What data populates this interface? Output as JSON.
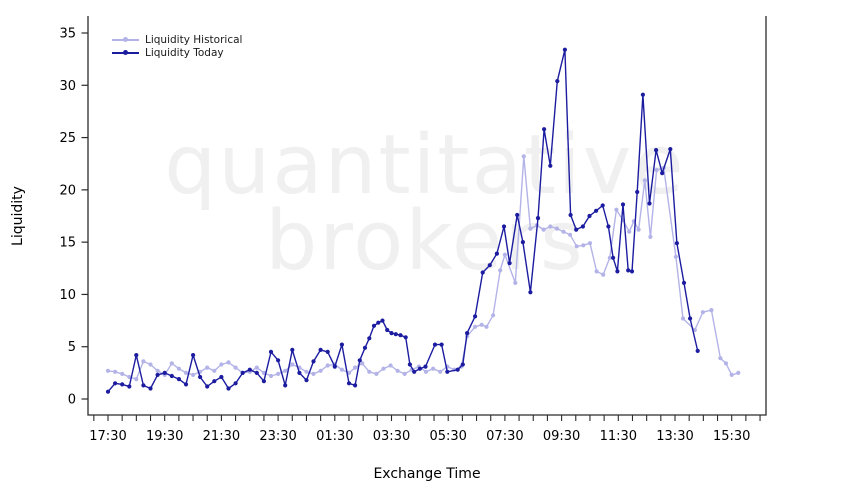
{
  "watermark": {
    "line1": "quantitative",
    "line2": "brokers"
  },
  "colors": {
    "historical": "#b3b3e8",
    "today": "#1c1ca0",
    "axis": "#2b2b2b",
    "text": "#000000",
    "watermark": "#f0f0f0"
  },
  "legend": [
    {
      "label": "Liquidity Historical",
      "series_key": "historical"
    },
    {
      "label": "Liquidity Today",
      "series_key": "today"
    }
  ],
  "chart_data": {
    "type": "line",
    "title": "",
    "xlabel": "Exchange Time",
    "ylabel": "Liquidity",
    "ylim": [
      0,
      35
    ],
    "grid": false,
    "legend_position": "top-left-inside",
    "x_unit": "minutes since 17:30 (exchange time, wraps past midnight)",
    "y_ticks": [
      0,
      5,
      10,
      15,
      20,
      25,
      30,
      35
    ],
    "x_major_ticks": [
      {
        "t": 0,
        "label": "17:30"
      },
      {
        "t": 120,
        "label": "19:30"
      },
      {
        "t": 240,
        "label": "21:30"
      },
      {
        "t": 360,
        "label": "23:30"
      },
      {
        "t": 480,
        "label": "01:30"
      },
      {
        "t": 600,
        "label": "03:30"
      },
      {
        "t": 720,
        "label": "05:30"
      },
      {
        "t": 840,
        "label": "07:30"
      },
      {
        "t": 960,
        "label": "09:30"
      },
      {
        "t": 1080,
        "label": "11:30"
      },
      {
        "t": 1200,
        "label": "13:30"
      },
      {
        "t": 1320,
        "label": "15:30"
      }
    ],
    "x_minor_tick_interval_min": 30,
    "x_minor_tick_range_min": [
      -30,
      1380
    ],
    "series": [
      {
        "name": "Liquidity Historical",
        "color_key": "historical",
        "points": [
          [
            0,
            2.7
          ],
          [
            15,
            2.6
          ],
          [
            30,
            2.4
          ],
          [
            45,
            2.1
          ],
          [
            60,
            1.9
          ],
          [
            75,
            3.6
          ],
          [
            90,
            3.3
          ],
          [
            105,
            2.7
          ],
          [
            120,
            2.3
          ],
          [
            135,
            3.4
          ],
          [
            150,
            2.9
          ],
          [
            165,
            2.5
          ],
          [
            180,
            2.3
          ],
          [
            195,
            2.6
          ],
          [
            210,
            3.0
          ],
          [
            225,
            2.7
          ],
          [
            240,
            3.3
          ],
          [
            255,
            3.5
          ],
          [
            270,
            3.0
          ],
          [
            285,
            2.5
          ],
          [
            300,
            2.6
          ],
          [
            315,
            3.0
          ],
          [
            330,
            2.5
          ],
          [
            345,
            2.2
          ],
          [
            360,
            2.4
          ],
          [
            375,
            2.7
          ],
          [
            390,
            3.3
          ],
          [
            405,
            3.0
          ],
          [
            420,
            2.6
          ],
          [
            435,
            2.4
          ],
          [
            450,
            2.7
          ],
          [
            465,
            3.2
          ],
          [
            480,
            3.3
          ],
          [
            495,
            2.8
          ],
          [
            510,
            2.5
          ],
          [
            523,
            3.0
          ],
          [
            538,
            3.4
          ],
          [
            553,
            2.6
          ],
          [
            568,
            2.4
          ],
          [
            583,
            2.9
          ],
          [
            598,
            3.2
          ],
          [
            613,
            2.7
          ],
          [
            628,
            2.4
          ],
          [
            643,
            2.8
          ],
          [
            658,
            3.1
          ],
          [
            673,
            2.6
          ],
          [
            688,
            2.9
          ],
          [
            703,
            2.6
          ],
          [
            718,
            3.1
          ],
          [
            733,
            2.8
          ],
          [
            748,
            3.1
          ],
          [
            760,
            6.0
          ],
          [
            777,
            6.9
          ],
          [
            791,
            7.1
          ],
          [
            801,
            6.9
          ],
          [
            815,
            8.0
          ],
          [
            830,
            12.3
          ],
          [
            840,
            13.8
          ],
          [
            862,
            11.1
          ],
          [
            880,
            23.2
          ],
          [
            894,
            16.3
          ],
          [
            908,
            16.6
          ],
          [
            922,
            16.2
          ],
          [
            936,
            16.5
          ],
          [
            950,
            16.3
          ],
          [
            964,
            16.0
          ],
          [
            978,
            15.7
          ],
          [
            992,
            14.6
          ],
          [
            1006,
            14.7
          ],
          [
            1020,
            14.9
          ],
          [
            1034,
            12.2
          ],
          [
            1048,
            11.9
          ],
          [
            1062,
            13.5
          ],
          [
            1076,
            18.1
          ],
          [
            1090,
            17.1
          ],
          [
            1103,
            16.0
          ],
          [
            1113,
            17.0
          ],
          [
            1123,
            16.2
          ],
          [
            1136,
            20.9
          ],
          [
            1148,
            15.5
          ],
          [
            1161,
            21.9
          ],
          [
            1176,
            22.1
          ],
          [
            1202,
            13.6
          ],
          [
            1217,
            7.7
          ],
          [
            1242,
            6.6
          ],
          [
            1259,
            8.3
          ],
          [
            1277,
            8.5
          ],
          [
            1296,
            3.9
          ],
          [
            1308,
            3.4
          ],
          [
            1320,
            2.3
          ],
          [
            1334,
            2.5
          ]
        ]
      },
      {
        "name": "Liquidity Today",
        "color_key": "today",
        "points": [
          [
            0,
            0.7
          ],
          [
            15,
            1.5
          ],
          [
            30,
            1.4
          ],
          [
            45,
            1.2
          ],
          [
            60,
            4.2
          ],
          [
            75,
            1.3
          ],
          [
            90,
            1.0
          ],
          [
            105,
            2.3
          ],
          [
            120,
            2.5
          ],
          [
            135,
            2.2
          ],
          [
            150,
            1.9
          ],
          [
            165,
            1.4
          ],
          [
            180,
            4.2
          ],
          [
            195,
            2.1
          ],
          [
            210,
            1.2
          ],
          [
            225,
            1.7
          ],
          [
            240,
            2.1
          ],
          [
            255,
            1.0
          ],
          [
            270,
            1.5
          ],
          [
            285,
            2.5
          ],
          [
            300,
            2.8
          ],
          [
            315,
            2.5
          ],
          [
            330,
            1.7
          ],
          [
            345,
            4.5
          ],
          [
            360,
            3.7
          ],
          [
            375,
            1.3
          ],
          [
            390,
            4.7
          ],
          [
            405,
            2.5
          ],
          [
            420,
            1.8
          ],
          [
            435,
            3.6
          ],
          [
            450,
            4.7
          ],
          [
            465,
            4.5
          ],
          [
            480,
            3.1
          ],
          [
            495,
            5.2
          ],
          [
            510,
            1.5
          ],
          [
            523,
            1.3
          ],
          [
            533,
            3.7
          ],
          [
            544,
            4.9
          ],
          [
            553,
            5.8
          ],
          [
            563,
            7.0
          ],
          [
            572,
            7.3
          ],
          [
            581,
            7.5
          ],
          [
            591,
            6.6
          ],
          [
            600,
            6.3
          ],
          [
            609,
            6.2
          ],
          [
            619,
            6.1
          ],
          [
            630,
            5.9
          ],
          [
            639,
            3.3
          ],
          [
            648,
            2.6
          ],
          [
            660,
            2.9
          ],
          [
            672,
            3.1
          ],
          [
            692,
            5.2
          ],
          [
            706,
            5.2
          ],
          [
            718,
            2.6
          ],
          [
            740,
            2.8
          ],
          [
            751,
            3.3
          ],
          [
            760,
            6.3
          ],
          [
            777,
            7.9
          ],
          [
            793,
            12.1
          ],
          [
            808,
            12.8
          ],
          [
            823,
            13.9
          ],
          [
            838,
            16.5
          ],
          [
            850,
            13.0
          ],
          [
            866,
            17.6
          ],
          [
            878,
            15.0
          ],
          [
            894,
            10.2
          ],
          [
            910,
            17.3
          ],
          [
            923,
            25.8
          ],
          [
            936,
            22.3
          ],
          [
            951,
            30.4
          ],
          [
            967,
            33.4
          ],
          [
            979,
            17.6
          ],
          [
            991,
            16.2
          ],
          [
            1005,
            16.5
          ],
          [
            1019,
            17.5
          ],
          [
            1033,
            18.0
          ],
          [
            1047,
            18.5
          ],
          [
            1059,
            16.5
          ],
          [
            1069,
            13.5
          ],
          [
            1078,
            12.2
          ],
          [
            1090,
            18.6
          ],
          [
            1101,
            12.3
          ],
          [
            1109,
            12.2
          ],
          [
            1120,
            19.8
          ],
          [
            1132,
            29.1
          ],
          [
            1146,
            18.7
          ],
          [
            1160,
            23.8
          ],
          [
            1173,
            21.6
          ],
          [
            1190,
            23.9
          ],
          [
            1204,
            14.9
          ],
          [
            1219,
            11.1
          ],
          [
            1232,
            7.7
          ],
          [
            1248,
            4.6
          ]
        ]
      }
    ]
  }
}
